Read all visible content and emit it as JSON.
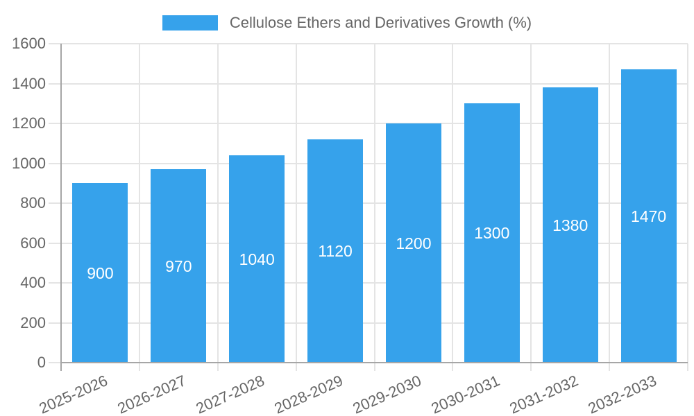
{
  "chart_data": {
    "type": "bar",
    "title": "Cellulose Ethers and Derivatives Growth (%)",
    "legend": {
      "position": "top",
      "label": "Cellulose Ethers and Derivatives Growth (%)",
      "swatch_color": "#36A2EB"
    },
    "categories": [
      "2025-2026",
      "2026-2027",
      "2027-2028",
      "2028-2029",
      "2029-2030",
      "2030-2031",
      "2031-2032",
      "2032-2033"
    ],
    "values": [
      900,
      970,
      1040,
      1120,
      1200,
      1300,
      1380,
      1470
    ],
    "xlabel": "",
    "ylabel": "",
    "ylim": [
      0,
      1600
    ],
    "yticks": [
      0,
      200,
      400,
      600,
      800,
      1000,
      1200,
      1400,
      1600
    ],
    "grid": true,
    "value_labels": {
      "position": "center",
      "color": "#FFFFFF"
    },
    "colors": {
      "bar": "#36A2EB",
      "grid": "#E4E4E4",
      "axis": "#A6A6A6",
      "tick_text": "#666666",
      "legend_text": "#666666"
    }
  }
}
